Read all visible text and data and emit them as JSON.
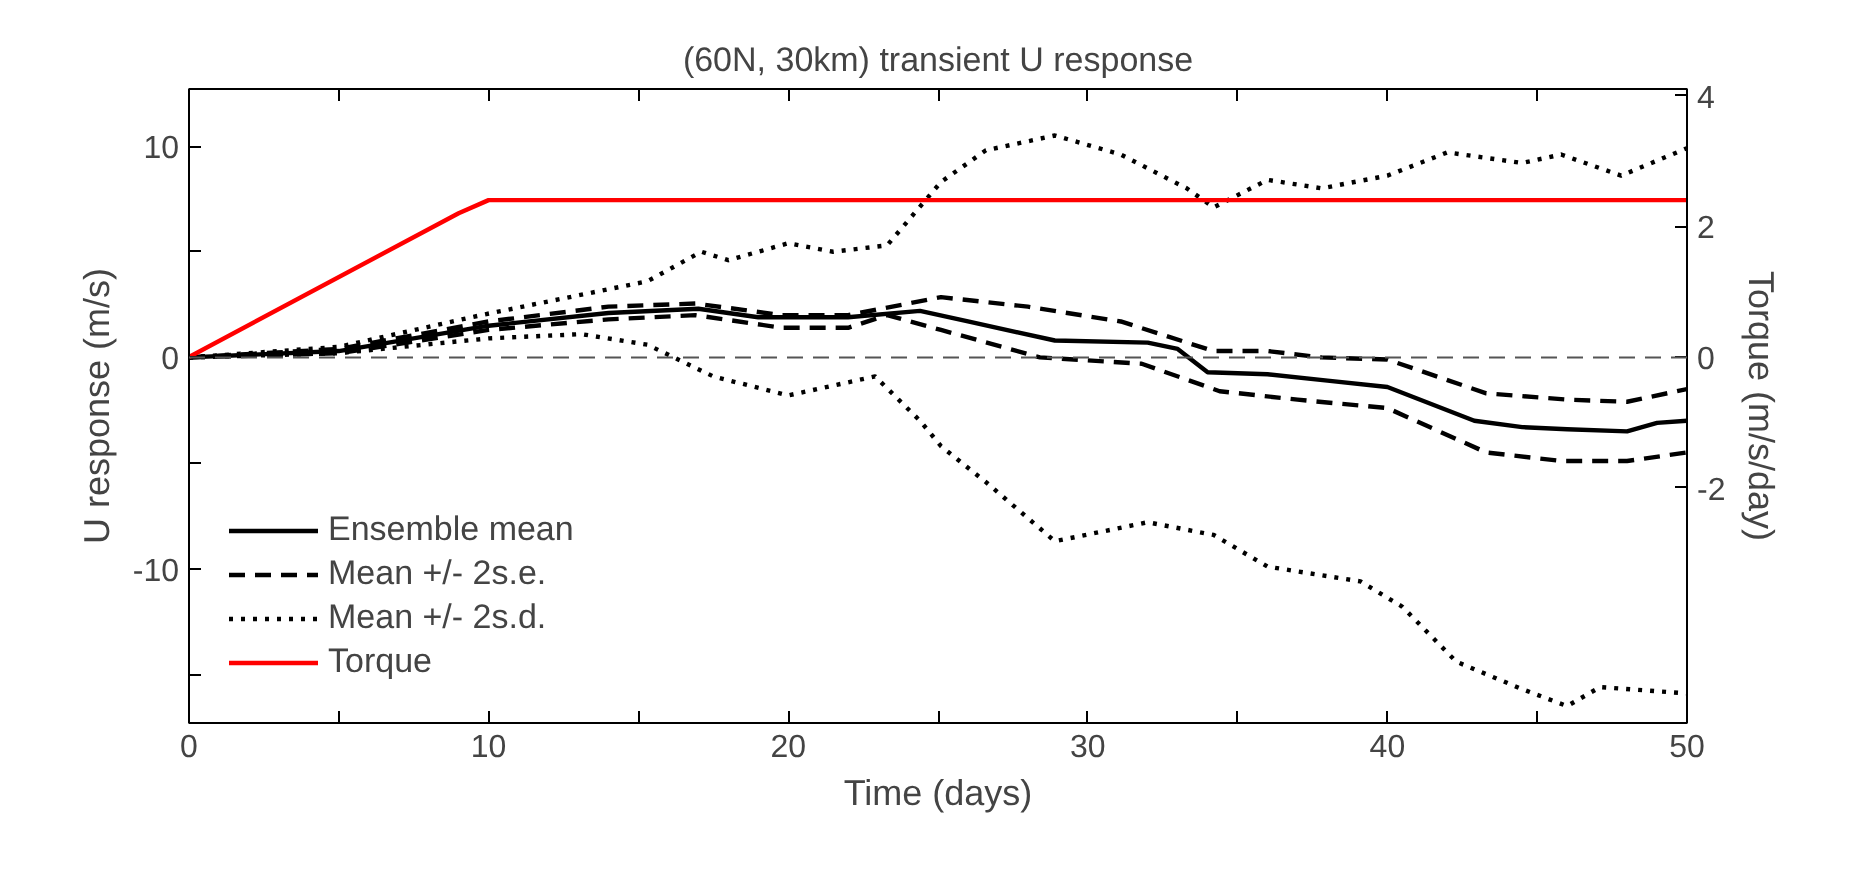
{
  "chart_data": {
    "type": "line",
    "title": "(60N, 30km) transient U response",
    "xlabel": "Time (days)",
    "ylabel": "U response (m/s)",
    "y2label": "Torque (m/s/day)",
    "xlim": [
      0,
      50
    ],
    "xticks": [
      0,
      {
        "value": 5,
        "label": null
      },
      10,
      {
        "value": 15,
        "label": null
      },
      20,
      {
        "value": 25,
        "label": null
      },
      30,
      {
        "value": 35,
        "label": null
      },
      40,
      {
        "value": 45,
        "label": null
      },
      50
    ],
    "ylim": [
      -17.3,
      12.7
    ],
    "yticks": [
      {
        "value": -15,
        "label": null
      },
      -10,
      {
        "value": -5,
        "label": null
      },
      0,
      {
        "value": 5,
        "label": null
      },
      10
    ],
    "y2lim": [
      -5.6,
      4.1
    ],
    "y2ticks": [
      -2,
      0,
      2,
      4
    ],
    "legend": "bottom left",
    "grid": false,
    "ref_lines": [
      {
        "axis": "y",
        "value": 0,
        "label": null,
        "color": "#555555",
        "line_style": "dashed"
      }
    ],
    "series": [
      {
        "name": "Ensemble mean",
        "color": "#000000",
        "line_style": "solid",
        "x": [
          0,
          5,
          10,
          14,
          17,
          19,
          22,
          24.4,
          26,
          28.9,
          32,
          33,
          34,
          36,
          38,
          40,
          42.9,
          44.5,
          46,
          48,
          49,
          50
        ],
        "values": [
          0,
          0.3,
          1.5,
          2.1,
          2.3,
          1.9,
          1.9,
          2.2,
          1.7,
          0.8,
          0.7,
          0.4,
          -0.7,
          -0.8,
          -1.1,
          -1.4,
          -3.0,
          -3.3,
          -3.4,
          -3.5,
          -3.1,
          -3.0
        ]
      },
      {
        "name": "Mean +/- 2s.e.",
        "color": "#000000",
        "line_style": "dashed",
        "x": [
          0,
          5,
          10,
          14,
          16.9,
          19.8,
          22,
          25.1,
          28,
          31.1,
          34.2,
          36,
          37.8,
          40,
          43.3,
          46,
          48,
          50
        ],
        "values": [
          0,
          0.4,
          1.7,
          2.4,
          2.55,
          2.0,
          2.0,
          2.85,
          2.4,
          1.7,
          0.3,
          0.3,
          0,
          -0.1,
          -1.7,
          -2.0,
          -2.1,
          -1.5
        ]
      },
      {
        "name": null,
        "color": "#000000",
        "line_style": "dashed",
        "x": [
          0,
          5,
          10,
          14,
          16.9,
          19.8,
          22,
          23.3,
          25.1,
          28.4,
          31.8,
          34.4,
          37,
          40,
          43.3,
          45.8,
          48,
          50
        ],
        "values": [
          0,
          0.2,
          1.3,
          1.8,
          2.0,
          1.4,
          1.4,
          2.0,
          1.3,
          0,
          -0.3,
          -1.6,
          -2.0,
          -2.4,
          -4.5,
          -4.9,
          -4.9,
          -4.5
        ]
      },
      {
        "name": "Mean +/- 2s.d.",
        "color": "#000000",
        "line_style": "dotted",
        "x": [
          0,
          5,
          9.75,
          15.3,
          17.1,
          18,
          20,
          21.5,
          23.3,
          25.1,
          26.6,
          28.9,
          31.1,
          33.3,
          34.2,
          36,
          37.8,
          40,
          42,
          44.5,
          45.8,
          47.8,
          50
        ],
        "values": [
          0,
          0.5,
          2.0,
          3.6,
          5.0,
          4.6,
          5.4,
          5.0,
          5.3,
          8.3,
          9.8,
          10.5,
          9.6,
          8.0,
          7.1,
          8.4,
          8.0,
          8.6,
          9.7,
          9.2,
          9.6,
          8.6,
          9.9
        ]
      },
      {
        "name": null,
        "color": "#000000",
        "line_style": "dotted",
        "x": [
          0,
          5,
          10,
          13.1,
          15.3,
          17.5,
          20,
          22.9,
          24.4,
          25.1,
          26.6,
          28.9,
          32,
          34.2,
          36,
          39.1,
          40.5,
          42.3,
          44.5,
          46,
          47.1,
          50
        ],
        "values": [
          0,
          0.2,
          0.9,
          1.1,
          0.6,
          -0.9,
          -1.8,
          -0.9,
          -3.0,
          -4.2,
          -5.9,
          -8.7,
          -7.8,
          -8.4,
          -9.9,
          -10.6,
          -11.8,
          -14.4,
          -15.7,
          -16.5,
          -15.6,
          -15.9
        ]
      },
      {
        "name": "Torque",
        "color": "#ff0000",
        "line_style": "solid",
        "axis": "y2",
        "x": [
          0,
          9,
          10,
          50
        ],
        "values": [
          0,
          2.2,
          2.4,
          2.4
        ]
      }
    ]
  }
}
